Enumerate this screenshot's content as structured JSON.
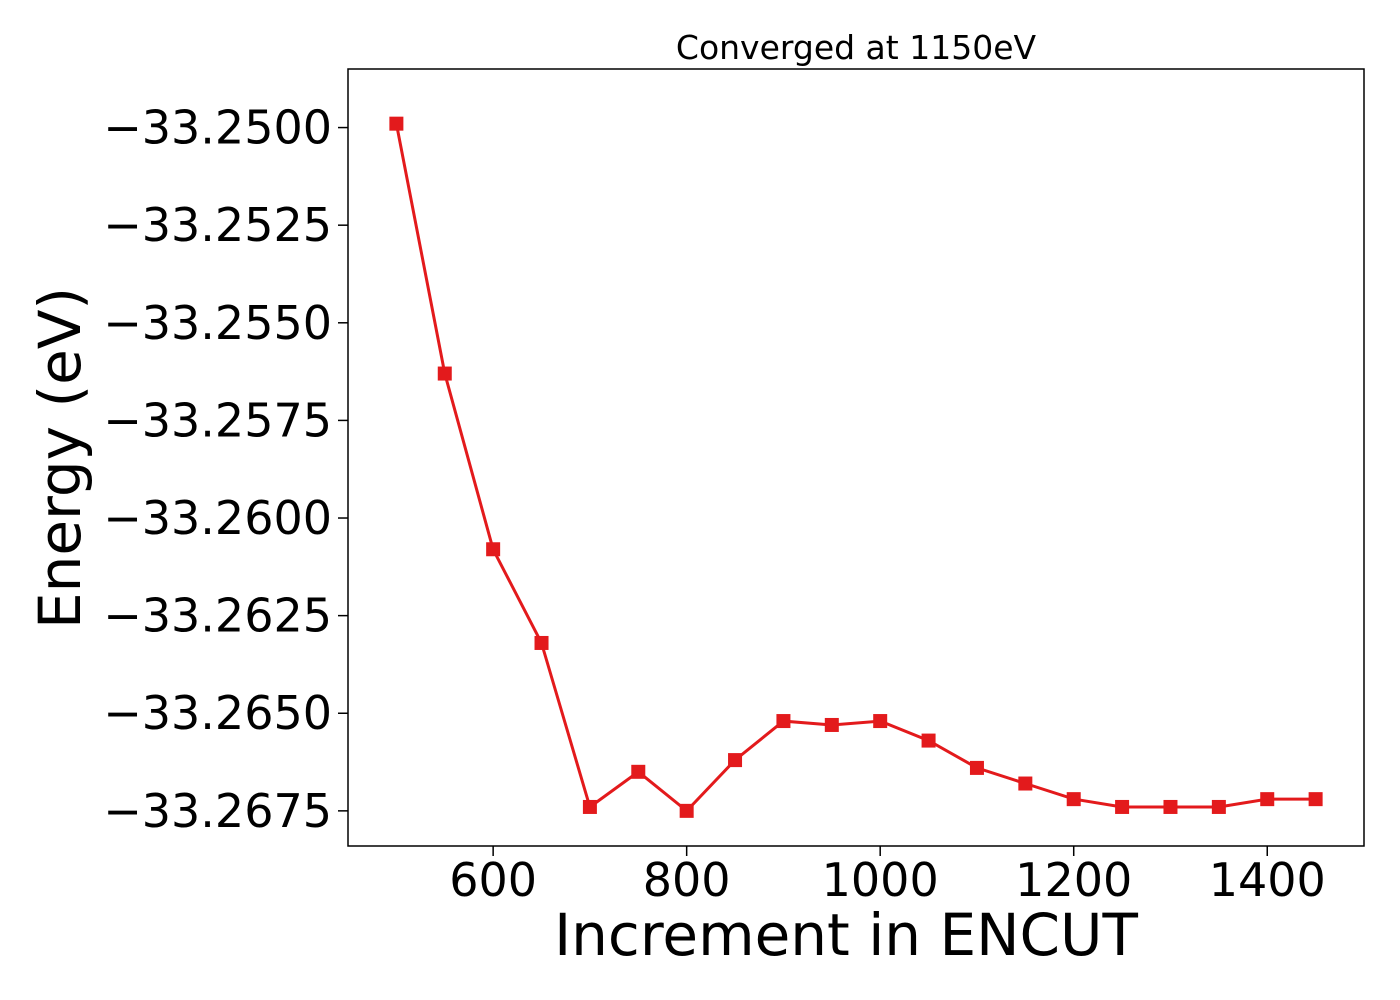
{
  "chart_data": {
    "type": "line",
    "title": "Converged at 1150eV",
    "xlabel": "Increment in ENCUT",
    "ylabel": "Energy (eV)",
    "xlim": [
      450,
      1500
    ],
    "ylim": [
      -33.2684,
      -33.2485
    ],
    "xticks": [
      600,
      800,
      1000,
      1200,
      1400
    ],
    "yticks": [
      -33.25,
      -33.2525,
      -33.255,
      -33.2575,
      -33.26,
      -33.2625,
      -33.265,
      -33.2675
    ],
    "xtick_labels": [
      "600",
      "800",
      "1000",
      "1200",
      "1400"
    ],
    "ytick_labels": [
      "−33.2500",
      "−33.2525",
      "−33.2550",
      "−33.2575",
      "−33.2600",
      "−33.2625",
      "−33.2650",
      "−33.2675"
    ],
    "grid": false,
    "marker": "square",
    "color": "#e31a1c",
    "series": [
      {
        "x": [
          500,
          550,
          600,
          650,
          700,
          750,
          800,
          850,
          900,
          950,
          1000,
          1050,
          1100,
          1150,
          1200,
          1250,
          1300,
          1350,
          1400,
          1450
        ],
        "y": [
          -33.2499,
          -33.2563,
          -33.2608,
          -33.2632,
          -33.2674,
          -33.2665,
          -33.2675,
          -33.2662,
          -33.2652,
          -33.2653,
          -33.2652,
          -33.2657,
          -33.2664,
          -33.2668,
          -33.2672,
          -33.2674,
          -33.2674,
          -33.2674,
          -33.2672,
          -33.2672
        ]
      }
    ]
  }
}
